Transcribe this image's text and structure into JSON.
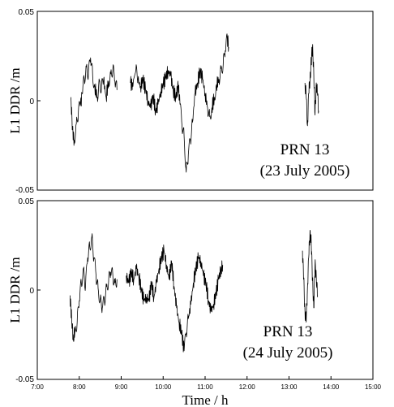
{
  "chart_data": [
    {
      "type": "line",
      "ylabel": "L1 DDR /m",
      "xlabel": "",
      "annotation": [
        "PRN 13",
        "(23 July 2005)"
      ],
      "xlim": [
        7,
        15
      ],
      "ylim": [
        -0.05,
        0.05
      ],
      "y_ticks": [
        "0.05",
        "0",
        "-0.05"
      ],
      "x_ticks": [],
      "grid": false,
      "series": [
        {
          "values": [
            [
              7.8,
              0.002
            ],
            [
              7.84,
              -0.016
            ],
            [
              7.88,
              -0.022
            ],
            [
              7.93,
              -0.013
            ],
            [
              7.98,
              -0.006
            ],
            [
              8.03,
              -0.002
            ],
            [
              8.07,
              0.004
            ],
            [
              8.12,
              0.012
            ],
            [
              8.17,
              0.019
            ],
            [
              8.22,
              0.015
            ],
            [
              8.27,
              0.024
            ],
            [
              8.32,
              0.014
            ],
            [
              8.37,
              0.008
            ],
            [
              8.43,
              0.002
            ],
            [
              8.48,
              0.011
            ],
            [
              8.53,
              0.007
            ],
            [
              8.58,
              0.012
            ],
            [
              8.64,
              0.002
            ],
            [
              8.7,
              0.011
            ],
            [
              8.75,
              0.015
            ],
            [
              8.8,
              0.018
            ],
            [
              8.85,
              0.011
            ],
            [
              8.9,
              0.006
            ],
            [
              9.22,
              0.01
            ],
            [
              9.28,
              0.008
            ],
            [
              9.35,
              0.017
            ],
            [
              9.4,
              0.012
            ],
            [
              9.46,
              0.008
            ],
            [
              9.52,
              0.012
            ],
            [
              9.58,
              0.006
            ],
            [
              9.64,
              0.0
            ],
            [
              9.7,
              -0.004
            ],
            [
              9.76,
              0.003
            ],
            [
              9.82,
              -0.006
            ],
            [
              9.88,
              -0.002
            ],
            [
              9.94,
              0.005
            ],
            [
              10.0,
              0.009
            ],
            [
              10.06,
              0.013
            ],
            [
              10.12,
              0.017
            ],
            [
              10.18,
              0.014
            ],
            [
              10.24,
              0.006
            ],
            [
              10.3,
              0.002
            ],
            [
              10.36,
              0.008
            ],
            [
              10.4,
              -0.002
            ],
            [
              10.45,
              -0.014
            ],
            [
              10.5,
              -0.02
            ],
            [
              10.55,
              -0.04
            ],
            [
              10.6,
              -0.03
            ],
            [
              10.65,
              -0.022
            ],
            [
              10.7,
              -0.012
            ],
            [
              10.76,
              0.004
            ],
            [
              10.82,
              0.01
            ],
            [
              10.88,
              0.017
            ],
            [
              10.94,
              0.012
            ],
            [
              11.0,
              0.004
            ],
            [
              11.06,
              -0.004
            ],
            [
              11.11,
              -0.009
            ],
            [
              11.16,
              -0.004
            ],
            [
              11.22,
              0.002
            ],
            [
              11.27,
              0.009
            ],
            [
              11.33,
              0.012
            ],
            [
              11.38,
              0.018
            ],
            [
              11.43,
              0.02
            ],
            [
              11.48,
              0.028
            ],
            [
              11.53,
              0.035
            ],
            [
              11.56,
              0.03
            ],
            [
              13.38,
              0.01
            ],
            [
              13.41,
              0.002
            ],
            [
              13.44,
              -0.014
            ],
            [
              13.47,
              0.004
            ],
            [
              13.5,
              0.012
            ],
            [
              13.53,
              0.022
            ],
            [
              13.56,
              0.03
            ],
            [
              13.59,
              0.016
            ],
            [
              13.62,
              -0.008
            ],
            [
              13.65,
              0.01
            ],
            [
              13.68,
              0.003
            ],
            [
              13.71,
              -0.006
            ]
          ],
          "breaks_after_x": [
            8.9,
            11.56
          ]
        }
      ]
    },
    {
      "type": "line",
      "ylabel": "L1 DDR /m",
      "xlabel": "Time / h",
      "annotation": [
        "PRN 13",
        "(24 July 2005)"
      ],
      "xlim": [
        7,
        15
      ],
      "ylim": [
        -0.05,
        0.05
      ],
      "y_ticks": [
        "0.05",
        "0",
        "-0.05"
      ],
      "x_ticks": [
        "7:00",
        "8:00",
        "9:00",
        "10:00",
        "11:00",
        "12:00",
        "13:00",
        "14:00",
        "15:00"
      ],
      "grid": false,
      "series": [
        {
          "values": [
            [
              7.78,
              -0.003
            ],
            [
              7.82,
              -0.016
            ],
            [
              7.86,
              -0.028
            ],
            [
              7.9,
              -0.022
            ],
            [
              7.95,
              -0.018
            ],
            [
              8.0,
              -0.006
            ],
            [
              8.05,
              0.004
            ],
            [
              8.1,
              0.012
            ],
            [
              8.15,
              0.002
            ],
            [
              8.2,
              0.018
            ],
            [
              8.25,
              0.024
            ],
            [
              8.3,
              0.03
            ],
            [
              8.35,
              0.018
            ],
            [
              8.4,
              0.008
            ],
            [
              8.45,
              0.001
            ],
            [
              8.5,
              -0.006
            ],
            [
              8.55,
              -0.01
            ],
            [
              8.6,
              -0.006
            ],
            [
              8.65,
              0.002
            ],
            [
              8.7,
              0.005
            ],
            [
              8.75,
              0.01
            ],
            [
              8.8,
              0.008
            ],
            [
              8.85,
              0.004
            ],
            [
              8.9,
              0.006
            ],
            [
              9.12,
              0.008
            ],
            [
              9.18,
              0.004
            ],
            [
              9.24,
              0.01
            ],
            [
              9.3,
              0.006
            ],
            [
              9.36,
              0.012
            ],
            [
              9.42,
              0.008
            ],
            [
              9.48,
              0.0
            ],
            [
              9.54,
              -0.006
            ],
            [
              9.6,
              -0.004
            ],
            [
              9.66,
              -0.006
            ],
            [
              9.72,
              0.004
            ],
            [
              9.78,
              -0.004
            ],
            [
              9.84,
              0.004
            ],
            [
              9.9,
              0.012
            ],
            [
              9.96,
              0.018
            ],
            [
              10.02,
              0.022
            ],
            [
              10.08,
              0.014
            ],
            [
              10.14,
              0.006
            ],
            [
              10.2,
              0.016
            ],
            [
              10.26,
              0.002
            ],
            [
              10.32,
              -0.01
            ],
            [
              10.38,
              -0.018
            ],
            [
              10.44,
              -0.024
            ],
            [
              10.5,
              -0.034
            ],
            [
              10.55,
              -0.024
            ],
            [
              10.6,
              -0.016
            ],
            [
              10.66,
              -0.008
            ],
            [
              10.72,
              0.004
            ],
            [
              10.78,
              0.012
            ],
            [
              10.84,
              0.018
            ],
            [
              10.9,
              0.016
            ],
            [
              10.96,
              0.008
            ],
            [
              11.02,
              0.004
            ],
            [
              11.08,
              -0.006
            ],
            [
              11.14,
              -0.012
            ],
            [
              11.2,
              -0.008
            ],
            [
              11.26,
              -0.002
            ],
            [
              11.32,
              0.006
            ],
            [
              11.38,
              0.012
            ],
            [
              11.42,
              0.014
            ],
            [
              13.32,
              0.022
            ],
            [
              13.35,
              0.006
            ],
            [
              13.38,
              -0.012
            ],
            [
              13.41,
              -0.018
            ],
            [
              13.44,
              0.002
            ],
            [
              13.47,
              0.018
            ],
            [
              13.5,
              0.033
            ],
            [
              13.53,
              0.026
            ],
            [
              13.56,
              0.006
            ],
            [
              13.59,
              -0.01
            ],
            [
              13.62,
              0.014
            ],
            [
              13.65,
              0.008
            ],
            [
              13.68,
              -0.004
            ]
          ],
          "breaks_after_x": [
            8.9,
            11.42
          ]
        }
      ]
    }
  ]
}
